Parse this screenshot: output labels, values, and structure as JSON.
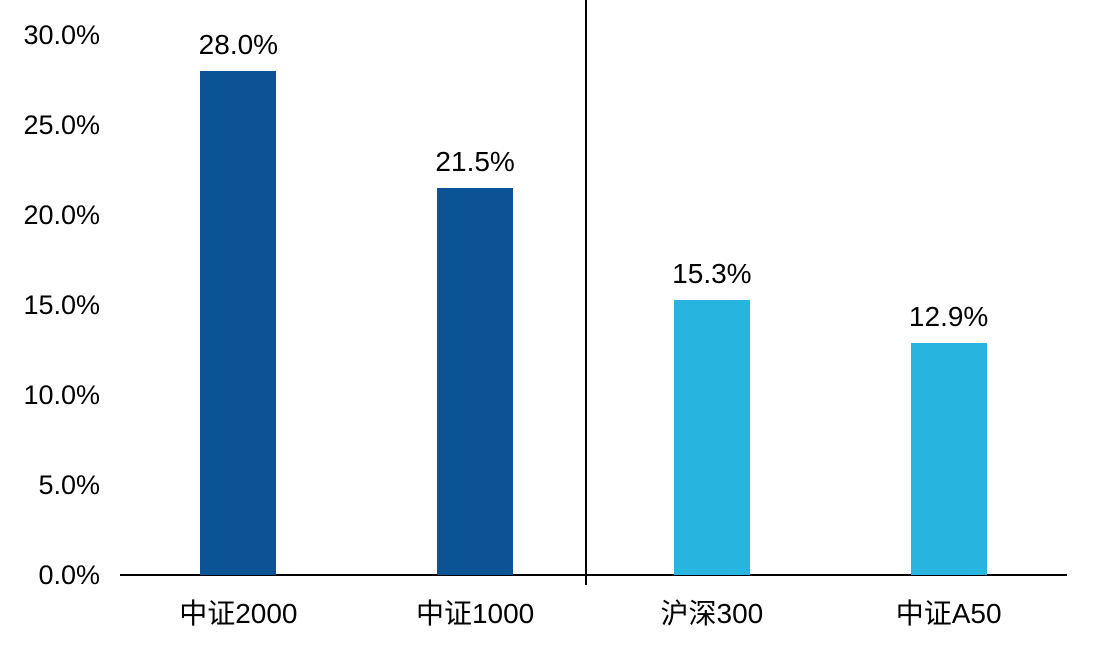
{
  "chart_data": {
    "type": "bar",
    "title": "",
    "xlabel": "",
    "ylabel": "",
    "categories": [
      "中证2000",
      "中证1000",
      "沪深300",
      "中证A50"
    ],
    "values": [
      28.0,
      21.5,
      15.3,
      12.9
    ],
    "data_labels": [
      "28.0%",
      "21.5%",
      "15.3%",
      "12.9%"
    ],
    "bar_colors": [
      "#0B5394",
      "#0B5394",
      "#27B5E0",
      "#27B5E0"
    ],
    "groups": [
      {
        "name": "dark-blue-group",
        "color": "#0B5394",
        "categories": [
          "中证2000",
          "中证1000"
        ]
      },
      {
        "name": "light-blue-group",
        "color": "#27B5E0",
        "categories": [
          "沪深300",
          "中证A50"
        ]
      }
    ],
    "ylim": [
      0,
      30
    ],
    "y_ticks": [
      {
        "label": "0.0%",
        "value": 0
      },
      {
        "label": "5.0%",
        "value": 5
      },
      {
        "label": "10.0%",
        "value": 10
      },
      {
        "label": "15.0%",
        "value": 15
      },
      {
        "label": "20.0%",
        "value": 20
      },
      {
        "label": "25.0%",
        "value": 25
      },
      {
        "label": "30.0%",
        "value": 30
      }
    ],
    "grid": false,
    "legend": null,
    "divider_after_category_index": 1,
    "axis_color": "#000000",
    "label_color": "#000000"
  }
}
